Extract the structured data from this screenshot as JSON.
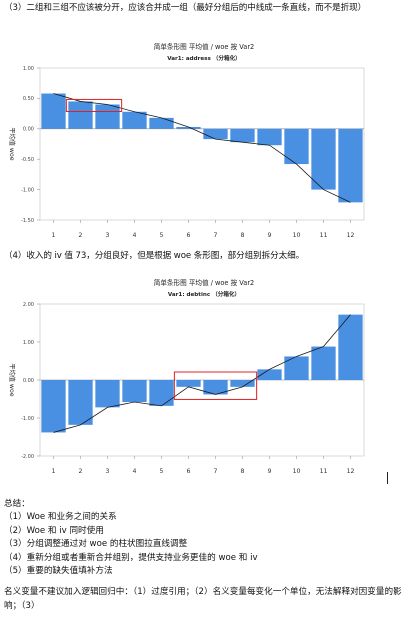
{
  "intro": "（3）二组和三组不应该被分开，应该合并成一组（最好分组后的中线成一条直线，而不是折现）",
  "note": "（4）收入的 iv 值 73，分组良好，但是根据 woe 条形图，部分组别拆分太细。",
  "summary": {
    "heading": "总结：",
    "items": [
      "（1）Woe 和业务之间的关系",
      "（2）Woe 和 iv 同时使用",
      "（3）分组调整通过对 woe 的柱状图拉直线调整",
      "（4）重新分组或者重新合并组别，提供支持业务更佳的 woe 和 iv",
      "（5）重要的缺失值填补方法"
    ],
    "closing": "名义变量不建议加入逻辑回归中：（1）过度引用；（2）名义变量每变化一个单位，无法解释对因变量的影响；（3）"
  },
  "colors": {
    "bar": "#4a90e2",
    "line": "#1a1a1a",
    "highlight": "#e02020"
  },
  "chart_data": [
    {
      "type": "bar",
      "title": "简单条形图 平均值 / woe 按 Var2",
      "subtitle": "Var1: address （分箱化）",
      "ylabel": "平均值 woe",
      "categories": [
        "1",
        "2",
        "3",
        "4",
        "5",
        "6",
        "7",
        "8",
        "9",
        "10",
        "11",
        "12"
      ],
      "values": [
        0.58,
        0.45,
        0.4,
        0.28,
        0.18,
        0.03,
        -0.17,
        -0.22,
        -0.27,
        -0.58,
        -1.0,
        -1.21
      ],
      "yticks": [
        "1.00",
        "0.50",
        "0.00",
        "-0.50",
        "-1.00",
        "-1.50"
      ],
      "ylim": [
        -1.5,
        1.0
      ],
      "grid": false,
      "highlight_categories": [
        "2",
        "3"
      ]
    },
    {
      "type": "bar",
      "title": "简单条形图 平均值 / woe 按 Var2",
      "subtitle": "Var1: debtinc （分箱化）",
      "ylabel": "平均值 woe",
      "categories": [
        "1",
        "2",
        "3",
        "4",
        "5",
        "6",
        "7",
        "8",
        "9",
        "10",
        "11",
        "12"
      ],
      "values": [
        -1.38,
        -1.18,
        -0.72,
        -0.58,
        -0.68,
        -0.18,
        -0.38,
        -0.18,
        0.28,
        0.62,
        0.88,
        1.72
      ],
      "yticks": [
        "2.00",
        "1.00",
        "0.00",
        "-1.00",
        "-2.00"
      ],
      "ylim": [
        -2.0,
        2.0
      ],
      "grid": false,
      "highlight_categories": [
        "6",
        "7",
        "8"
      ]
    }
  ]
}
